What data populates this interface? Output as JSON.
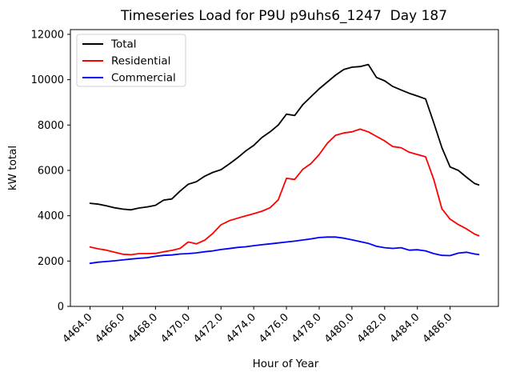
{
  "title": "Timeseries Load for P9U p9uhs6_1247  Day 187",
  "colors": {
    "background": "#ffffff",
    "axes": "#000000",
    "text": "#000000",
    "legend_border": "#d0d0d0",
    "total": "#000000",
    "residential": "#ff0000",
    "commercial": "#0000ff"
  },
  "chart_data": {
    "type": "line",
    "title": "Timeseries Load for P9U p9uhs6_1247  Day 187",
    "xlabel": "Hour of Year",
    "ylabel": "kW total",
    "grid": false,
    "legend_position": "upper left",
    "xlim": [
      4462.8,
      4488.95
    ],
    "ylim": [
      0,
      12210
    ],
    "xticks": {
      "values": [
        4464,
        4466,
        4468,
        4470,
        4472,
        4474,
        4476,
        4478,
        4480,
        4482,
        4484,
        4486
      ],
      "labels": [
        "4464.0",
        "4466.0",
        "4468.0",
        "4470.0",
        "4472.0",
        "4474.0",
        "4476.0",
        "4478.0",
        "4480.0",
        "4482.0",
        "4484.0",
        "4486.0"
      ],
      "rotation_deg": 45
    },
    "yticks": {
      "values": [
        0,
        2000,
        4000,
        6000,
        8000,
        10000,
        12000
      ],
      "labels": [
        "0",
        "2000",
        "4000",
        "6000",
        "8000",
        "10000",
        "12000"
      ]
    },
    "x": [
      4464.0,
      4464.5,
      4465.0,
      4465.5,
      4466.0,
      4466.5,
      4467.0,
      4467.5,
      4468.0,
      4468.5,
      4469.0,
      4469.5,
      4470.0,
      4470.5,
      4471.0,
      4471.5,
      4472.0,
      4472.5,
      4473.0,
      4473.5,
      4474.0,
      4474.5,
      4475.0,
      4475.5,
      4476.0,
      4476.5,
      4477.0,
      4477.5,
      4478.0,
      4478.5,
      4479.0,
      4479.5,
      4480.0,
      4480.5,
      4481.0,
      4481.5,
      4482.0,
      4482.5,
      4483.0,
      4483.5,
      4484.0,
      4484.5,
      4485.0,
      4485.5,
      4486.0,
      4486.5,
      4487.0,
      4487.5,
      4487.75
    ],
    "series": [
      {
        "name": "Total",
        "color": "#000000",
        "values": [
          4550,
          4510,
          4440,
          4350,
          4290,
          4260,
          4340,
          4390,
          4460,
          4690,
          4740,
          5090,
          5390,
          5500,
          5740,
          5910,
          6030,
          6280,
          6550,
          6850,
          7100,
          7450,
          7700,
          8000,
          8480,
          8420,
          8900,
          9250,
          9600,
          9900,
          10200,
          10450,
          10550,
          10580,
          10670,
          10100,
          9950,
          9700,
          9550,
          9400,
          9280,
          9150,
          8100,
          7000,
          6150,
          6000,
          5700,
          5420,
          5360
        ]
      },
      {
        "name": "Residential",
        "color": "#ff0000",
        "values": [
          2620,
          2540,
          2480,
          2390,
          2300,
          2280,
          2330,
          2330,
          2340,
          2410,
          2470,
          2560,
          2840,
          2760,
          2920,
          3220,
          3600,
          3780,
          3890,
          3990,
          4090,
          4200,
          4350,
          4700,
          5650,
          5600,
          6050,
          6300,
          6700,
          7200,
          7550,
          7650,
          7700,
          7820,
          7700,
          7500,
          7300,
          7050,
          7000,
          6800,
          6700,
          6600,
          5600,
          4300,
          3850,
          3610,
          3420,
          3190,
          3120
        ]
      },
      {
        "name": "Commercial",
        "color": "#0000ff",
        "values": [
          1900,
          1950,
          1980,
          2010,
          2050,
          2090,
          2120,
          2150,
          2210,
          2250,
          2270,
          2310,
          2330,
          2360,
          2410,
          2450,
          2510,
          2550,
          2600,
          2630,
          2680,
          2720,
          2760,
          2800,
          2840,
          2880,
          2930,
          2980,
          3040,
          3060,
          3060,
          3010,
          2940,
          2860,
          2780,
          2650,
          2590,
          2560,
          2590,
          2480,
          2500,
          2450,
          2330,
          2250,
          2240,
          2350,
          2390,
          2310,
          2290
        ]
      }
    ]
  }
}
